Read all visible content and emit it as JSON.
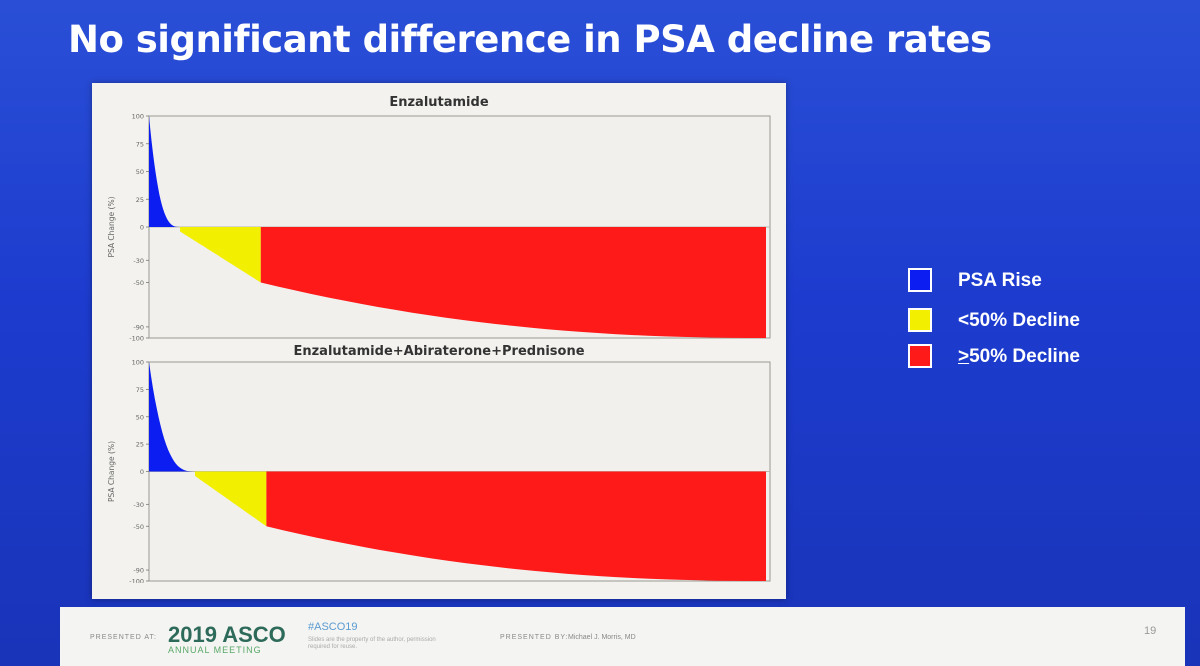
{
  "slide": {
    "title": "No significant difference in PSA decline rates",
    "slide_number": "19"
  },
  "legend": [
    {
      "label": "PSA Rise",
      "color": "#0b1df0",
      "prefix": ""
    },
    {
      "label": "<50% Decline",
      "color": "#f2ef00",
      "prefix": ""
    },
    {
      "label": "50% Decline",
      "color": "#ff1a1a",
      "prefix": ">"
    }
  ],
  "footer": {
    "presented_at": "PRESENTED AT:",
    "meeting_logo": "2019 ASCO",
    "meeting_sub": "ANNUAL MEETING",
    "hashtag": "#ASCO19",
    "disclaimer": "Slides are the property of the author, permission required for reuse.",
    "presented_by": "PRESENTED BY:",
    "presenter": "Michael J. Morris, MD"
  },
  "chart_data": [
    {
      "type": "bar",
      "subtype": "waterfall",
      "title": "Enzalutamide",
      "ylabel": "PSA Change (%)",
      "ylim": [
        -100,
        100
      ],
      "yticks": [
        "100",
        "75",
        "50",
        "25",
        "0",
        "-30",
        "-50",
        "-90",
        "-100"
      ],
      "colors": {
        "rise": "#0b1df0",
        "lt50": "#f2ef00",
        "ge50": "#ff1a1a"
      },
      "segments": [
        {
          "group": "PSA Rise",
          "fraction": 0.05,
          "from": 100,
          "to": 0
        },
        {
          "group": "<50% Decline",
          "fraction": 0.13,
          "from": 0,
          "to": -50
        },
        {
          "group": ">50% Decline",
          "fraction": 0.82,
          "from": -50,
          "to": -100
        }
      ]
    },
    {
      "type": "bar",
      "subtype": "waterfall",
      "title": "Enzalutamide+Abiraterone+Prednisone",
      "ylabel": "PSA Change (%)",
      "ylim": [
        -100,
        100
      ],
      "yticks": [
        "100",
        "75",
        "50",
        "25",
        "0",
        "-30",
        "-50",
        "-90",
        "-100"
      ],
      "colors": {
        "rise": "#0b1df0",
        "lt50": "#f2ef00",
        "ge50": "#ff1a1a"
      },
      "segments": [
        {
          "group": "PSA Rise",
          "fraction": 0.074,
          "from": 100,
          "to": 0
        },
        {
          "group": "<50% Decline",
          "fraction": 0.115,
          "from": 0,
          "to": -50
        },
        {
          "group": ">50% Decline",
          "fraction": 0.811,
          "from": -50,
          "to": -100
        }
      ]
    }
  ]
}
